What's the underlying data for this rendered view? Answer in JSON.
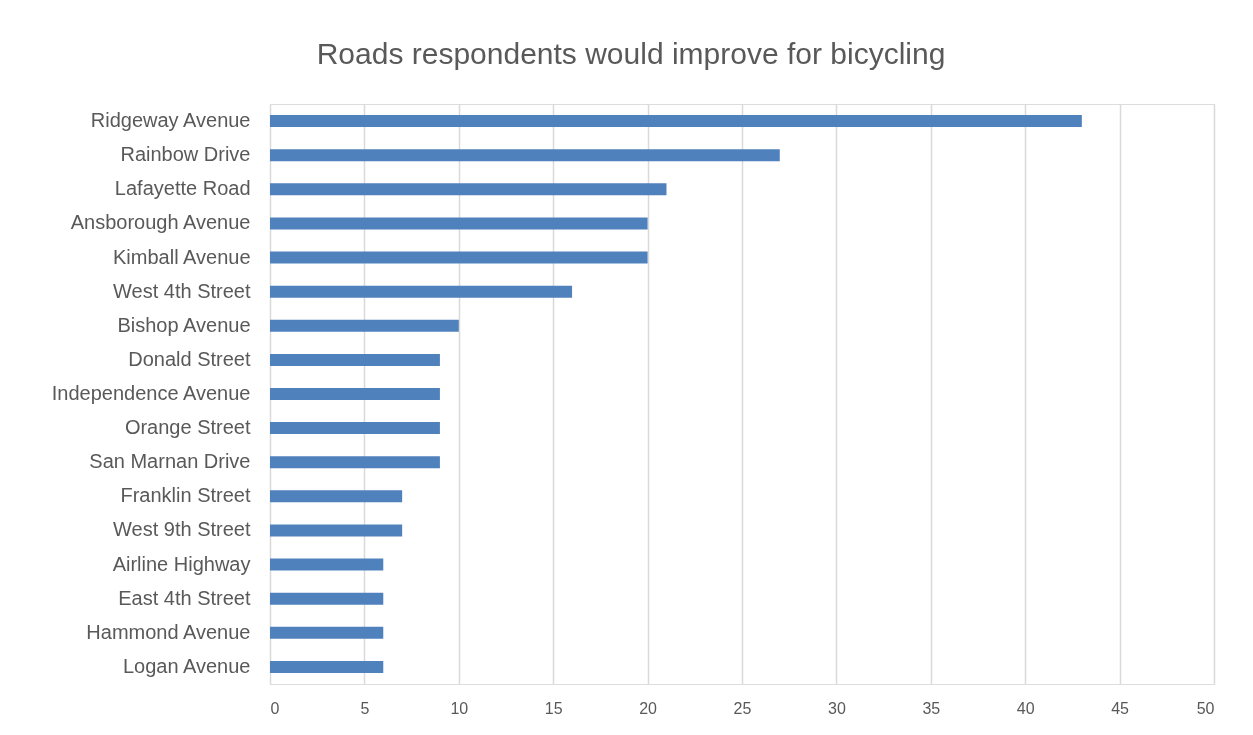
{
  "chart_data": {
    "type": "bar",
    "orientation": "horizontal",
    "title": "Roads respondents would improve for bicycling",
    "categories": [
      "Ridgeway Avenue",
      "Rainbow Drive",
      "Lafayette Road",
      "Ansborough Avenue",
      "Kimball Avenue",
      "West 4th Street",
      "Bishop Avenue",
      "Donald Street",
      "Independence Avenue",
      "Orange Street",
      "San Marnan Drive",
      "Franklin Street",
      "West 9th Street",
      "Airline Highway",
      "East 4th Street",
      "Hammond Avenue",
      "Logan Avenue"
    ],
    "values": [
      43,
      27,
      21,
      20,
      20,
      16,
      10,
      9,
      9,
      9,
      9,
      7,
      7,
      6,
      6,
      6,
      6
    ],
    "color": "#4f81bd",
    "xlim": [
      0,
      50
    ],
    "xticks": [
      0,
      5,
      10,
      15,
      20,
      25,
      30,
      35,
      40,
      45,
      50
    ],
    "grid": "x"
  }
}
